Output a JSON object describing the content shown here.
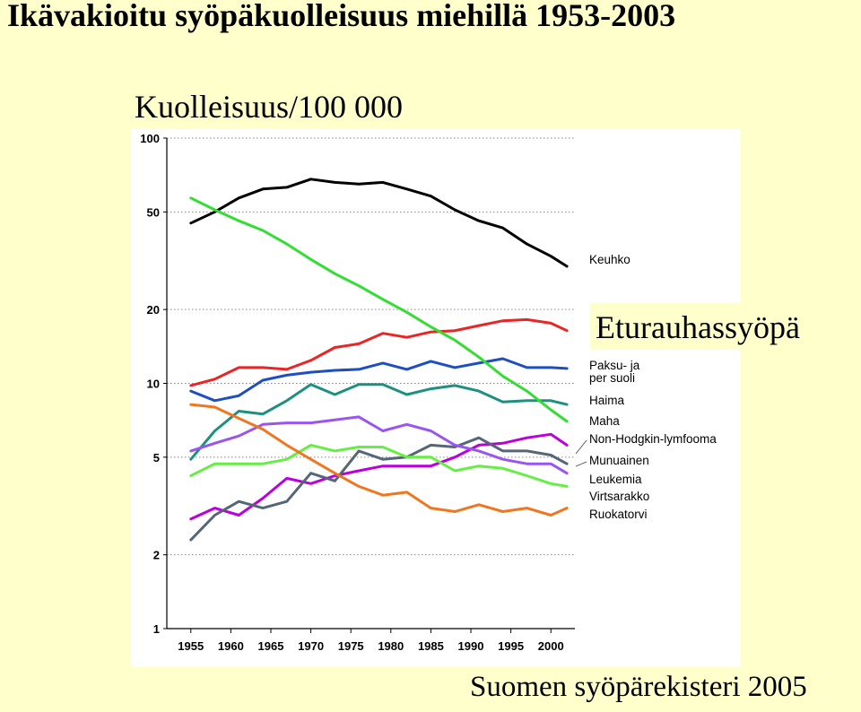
{
  "header": {
    "title": "Ikävakioitu syöpäkuolleisuus miehillä 1953-2003",
    "ylabel": "Kuolleisuus/100 000",
    "callout": "Eturauhassyöpä",
    "source": "Suomen syöpärekisteri 2005"
  },
  "chart_data": {
    "type": "line",
    "title": "Ikävakioitu syöpäkuolleisuus miehillä 1953-2003",
    "ylabel": "Kuolleisuus/100 000",
    "xlabel": "",
    "yscale": "log",
    "ylim": [
      1,
      100
    ],
    "xlim": [
      1952,
      2003
    ],
    "y_ticks": [
      1,
      2,
      5,
      10,
      20,
      50,
      100
    ],
    "x_ticks": [
      1955,
      1960,
      1965,
      1970,
      1975,
      1980,
      1985,
      1990,
      1995,
      2000
    ],
    "grid": "dotted horizontal",
    "x": [
      1955,
      1958,
      1961,
      1964,
      1967,
      1970,
      1973,
      1976,
      1979,
      1982,
      1985,
      1988,
      1991,
      1994,
      1997,
      2000,
      2002
    ],
    "series": [
      {
        "name": "Keuhko",
        "color": "#000000",
        "values": [
          45,
          50,
          57,
          62,
          63,
          68,
          66,
          65,
          66,
          62,
          58,
          51,
          46,
          43,
          37,
          33,
          30
        ]
      },
      {
        "name": "Eturauhassyöpä",
        "color": "#E82626",
        "values": [
          9.8,
          10.4,
          11.6,
          11.6,
          11.4,
          12.4,
          14.0,
          14.5,
          16.0,
          15.4,
          16.2,
          16.4,
          17.2,
          18.0,
          18.2,
          17.6,
          16.4
        ]
      },
      {
        "name": "Paksu- ja per suoli",
        "color": "#1F4FBF",
        "values": [
          9.3,
          8.5,
          8.9,
          10.3,
          10.8,
          11.1,
          11.3,
          11.4,
          12.1,
          11.4,
          12.3,
          11.6,
          12.1,
          12.6,
          11.6,
          11.6,
          11.5
        ]
      },
      {
        "name": "Haima",
        "color": "#1E9080",
        "values": [
          4.9,
          6.4,
          7.7,
          7.5,
          8.5,
          9.9,
          9.0,
          9.9,
          9.9,
          9.0,
          9.5,
          9.8,
          9.3,
          8.4,
          8.5,
          8.5,
          8.2
        ]
      },
      {
        "name": "Maha",
        "color": "#33DD33",
        "values": [
          57,
          51,
          46,
          42,
          37,
          32,
          28,
          25,
          22,
          19.5,
          17.0,
          15.0,
          12.8,
          10.7,
          9.3,
          7.8,
          7.0
        ]
      },
      {
        "name": "Non-Hodgkin-lymfooma",
        "color": "#BB00DD",
        "values": [
          2.8,
          3.1,
          2.9,
          3.4,
          4.1,
          3.9,
          4.2,
          4.4,
          4.6,
          4.6,
          4.6,
          5.0,
          5.6,
          5.7,
          6.0,
          6.2,
          5.6
        ]
      },
      {
        "name": "Munuainen",
        "color": "#556677",
        "values": [
          2.3,
          2.9,
          3.3,
          3.1,
          3.3,
          4.3,
          4.0,
          5.3,
          4.9,
          5.0,
          5.6,
          5.5,
          6.0,
          5.3,
          5.3,
          5.1,
          4.7
        ]
      },
      {
        "name": "Leukemia",
        "color": "#9955EE",
        "values": [
          5.3,
          5.7,
          6.1,
          6.8,
          6.9,
          6.9,
          7.1,
          7.3,
          6.4,
          6.8,
          6.4,
          5.6,
          5.3,
          4.9,
          4.7,
          4.7,
          4.3
        ]
      },
      {
        "name": "Virtsarakko",
        "color": "#66EE44",
        "values": [
          4.2,
          4.7,
          4.7,
          4.7,
          4.9,
          5.6,
          5.3,
          5.5,
          5.5,
          5.0,
          5.0,
          4.4,
          4.6,
          4.5,
          4.2,
          3.9,
          3.8
        ]
      },
      {
        "name": "Ruokatorvi",
        "color": "#EE7722",
        "values": [
          8.2,
          8.0,
          7.2,
          6.5,
          5.6,
          4.9,
          4.3,
          3.8,
          3.5,
          3.6,
          3.1,
          3.0,
          3.2,
          3.0,
          3.1,
          2.9,
          3.1
        ]
      }
    ],
    "legend_labels": [
      "Keuhko",
      "Paksu- ja",
      "per suoli",
      "Haima",
      "Maha",
      "Non-Hodgkin-lymfooma",
      "Munuainen",
      "Leukemia",
      "Virtsarakko",
      "Ruokatorvi"
    ],
    "legend_placement": "right (direct labels)"
  }
}
